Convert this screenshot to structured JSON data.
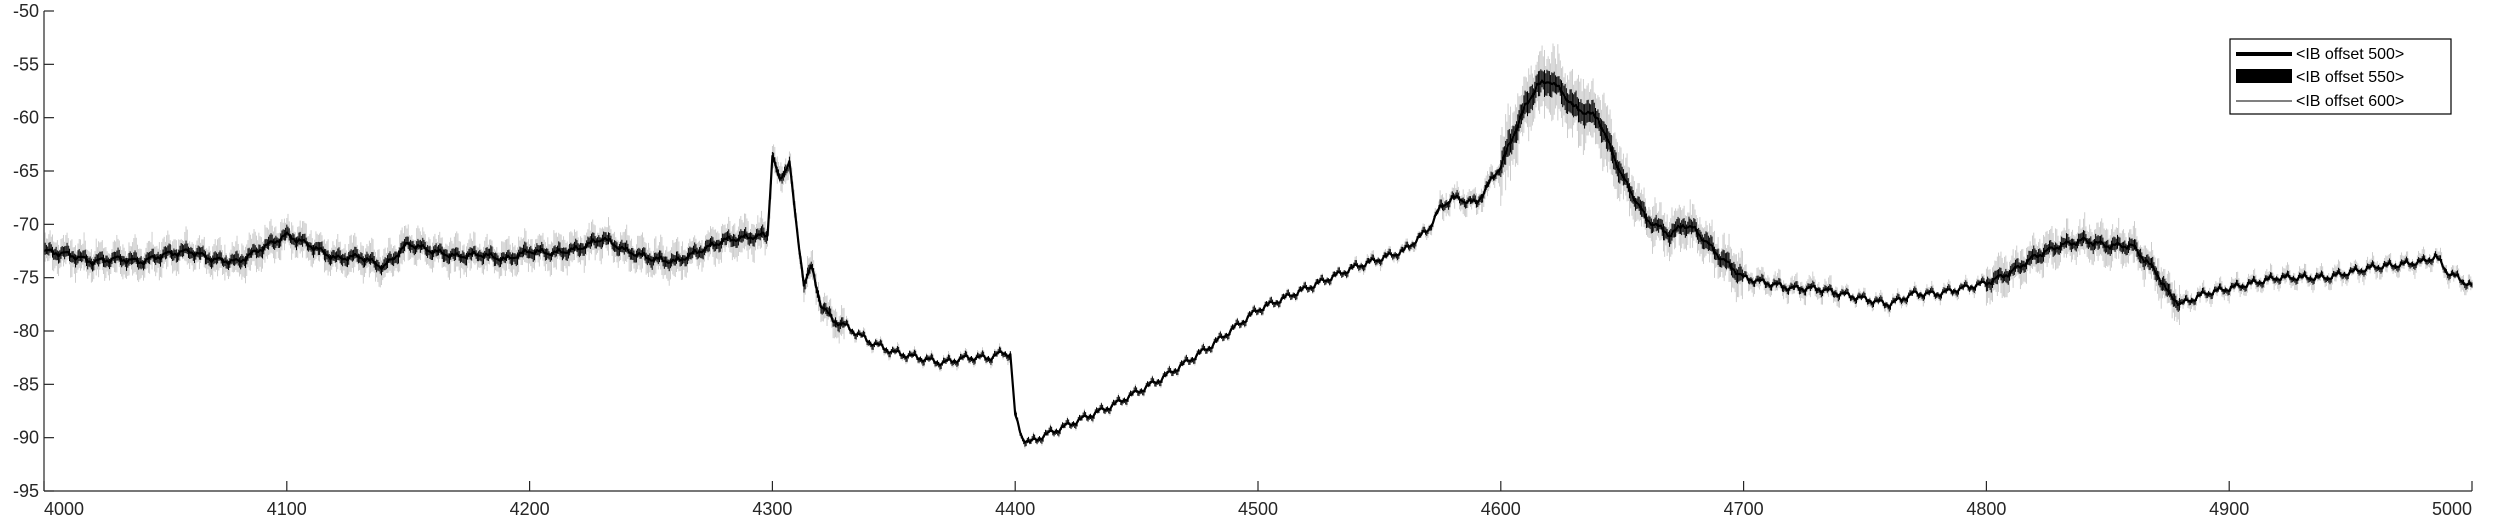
{
  "chart_data": {
    "type": "line",
    "title": "",
    "xlabel": "",
    "ylabel": "",
    "xlim": [
      4000,
      5000
    ],
    "ylim": [
      -95,
      -50
    ],
    "xticks": [
      "4000",
      "4100",
      "4200",
      "4300",
      "4400",
      "4500",
      "4600",
      "4700",
      "4800",
      "4900",
      "5000"
    ],
    "yticks": [
      "-50",
      "-55",
      "-60",
      "-65",
      "-70",
      "-75",
      "-80",
      "-85",
      "-90",
      "-95"
    ],
    "grid": false,
    "legend_position": "top-right",
    "series": [
      {
        "name": "<IB offset 500>",
        "color": "#000000",
        "style": "thick-line",
        "x": [
          4000,
          4010,
          4020,
          4030,
          4040,
          4050,
          4060,
          4070,
          4080,
          4090,
          4100,
          4110,
          4120,
          4130,
          4140,
          4150,
          4160,
          4170,
          4180,
          4190,
          4200,
          4210,
          4220,
          4230,
          4240,
          4250,
          4260,
          4270,
          4280,
          4290,
          4298,
          4300,
          4303,
          4307,
          4310,
          4313,
          4316,
          4320,
          4325,
          4330,
          4340,
          4350,
          4360,
          4370,
          4380,
          4390,
          4395,
          4398,
          4400,
          4403,
          4406,
          4410,
          4420,
          4440,
          4460,
          4480,
          4500,
          4520,
          4540,
          4560,
          4570,
          4575,
          4580,
          4590,
          4600,
          4610,
          4615,
          4620,
          4625,
          4630,
          4640,
          4650,
          4660,
          4670,
          4675,
          4680,
          4690,
          4700,
          4710,
          4720,
          4730,
          4740,
          4750,
          4760,
          4770,
          4780,
          4790,
          4800,
          4810,
          4820,
          4830,
          4840,
          4850,
          4860,
          4870,
          4875,
          4880,
          4890,
          4900,
          4920,
          4940,
          4960,
          4970,
          4980,
          4985,
          4990,
          5000
        ],
        "y": [
          -72.5,
          -72.8,
          -73.5,
          -73.2,
          -73.5,
          -72.8,
          -72.5,
          -73.3,
          -73.5,
          -72.2,
          -71.0,
          -72.0,
          -73.2,
          -73.0,
          -74.0,
          -71.8,
          -72.5,
          -73.0,
          -72.8,
          -73.3,
          -72.5,
          -72.7,
          -72.3,
          -71.3,
          -72.5,
          -73.2,
          -73.5,
          -72.5,
          -71.5,
          -71.2,
          -71.0,
          -63.5,
          -66.0,
          -64.0,
          -70.5,
          -75.5,
          -74.0,
          -77.5,
          -79.0,
          -79.5,
          -81.0,
          -82.0,
          -82.5,
          -83.0,
          -82.5,
          -82.5,
          -82.0,
          -82.2,
          -88.0,
          -90.0,
          -90.5,
          -90.0,
          -89.0,
          -87.0,
          -84.5,
          -81.5,
          -78.0,
          -76.0,
          -74.0,
          -72.5,
          -70.5,
          -68.5,
          -67.5,
          -68.0,
          -64.5,
          -59.0,
          -57.0,
          -56.5,
          -57.5,
          -59.0,
          -60.0,
          -65.5,
          -69.5,
          -71.0,
          -70.0,
          -70.5,
          -73.0,
          -75.0,
          -75.5,
          -76.0,
          -76.0,
          -76.5,
          -77.0,
          -77.5,
          -76.5,
          -76.5,
          -76.0,
          -75.5,
          -74.5,
          -73.0,
          -72.0,
          -71.5,
          -72.0,
          -72.0,
          -74.5,
          -76.5,
          -77.5,
          -76.5,
          -76.0,
          -75.0,
          -75.0,
          -74.0,
          -73.8,
          -73.5,
          -73.0,
          -74.5,
          -75.8
        ]
      },
      {
        "name": "<IB offset 550>",
        "color": "#000000",
        "style": "band",
        "half_width_ratio": 0.35
      },
      {
        "name": "<IB offset 600>",
        "color": "#c8c8c8",
        "style": "band",
        "half_width_ratio": 1.0
      }
    ]
  }
}
